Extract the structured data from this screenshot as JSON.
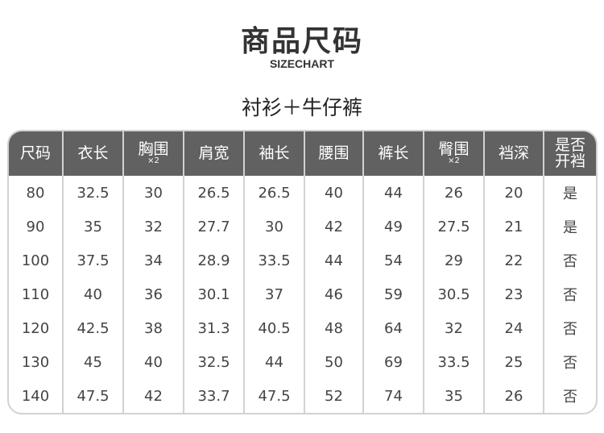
{
  "header": {
    "title": "商品尺码",
    "subtitle": "SIZECHART"
  },
  "section_title": "衬衫＋牛仔裤",
  "table": {
    "columns": [
      {
        "label": "尺码",
        "sub": ""
      },
      {
        "label": "衣长",
        "sub": ""
      },
      {
        "label": "胸围",
        "sub": "×2"
      },
      {
        "label": "肩宽",
        "sub": ""
      },
      {
        "label": "袖长",
        "sub": ""
      },
      {
        "label": "腰围",
        "sub": ""
      },
      {
        "label": "裤长",
        "sub": ""
      },
      {
        "label": "臀围",
        "sub": "×2"
      },
      {
        "label": "裆深",
        "sub": ""
      },
      {
        "label": "是否\n开裆",
        "sub": ""
      }
    ],
    "rows": [
      [
        "80",
        "32.5",
        "30",
        "26.5",
        "26.5",
        "40",
        "44",
        "26",
        "20",
        "是"
      ],
      [
        "90",
        "35",
        "32",
        "27.7",
        "30",
        "42",
        "49",
        "27.5",
        "21",
        "是"
      ],
      [
        "100",
        "37.5",
        "34",
        "28.9",
        "33.5",
        "44",
        "54",
        "29",
        "22",
        "否"
      ],
      [
        "110",
        "40",
        "36",
        "30.1",
        "37",
        "46",
        "59",
        "30.5",
        "23",
        "否"
      ],
      [
        "120",
        "42.5",
        "38",
        "31.3",
        "40.5",
        "48",
        "64",
        "32",
        "24",
        "否"
      ],
      [
        "130",
        "45",
        "40",
        "32.5",
        "44",
        "50",
        "69",
        "33.5",
        "25",
        "否"
      ],
      [
        "140",
        "47.5",
        "42",
        "33.7",
        "47.5",
        "52",
        "74",
        "35",
        "26",
        "否"
      ]
    ]
  },
  "colors": {
    "header_bg": "#616161",
    "border": "#d2d2d2",
    "text": "#444444"
  }
}
